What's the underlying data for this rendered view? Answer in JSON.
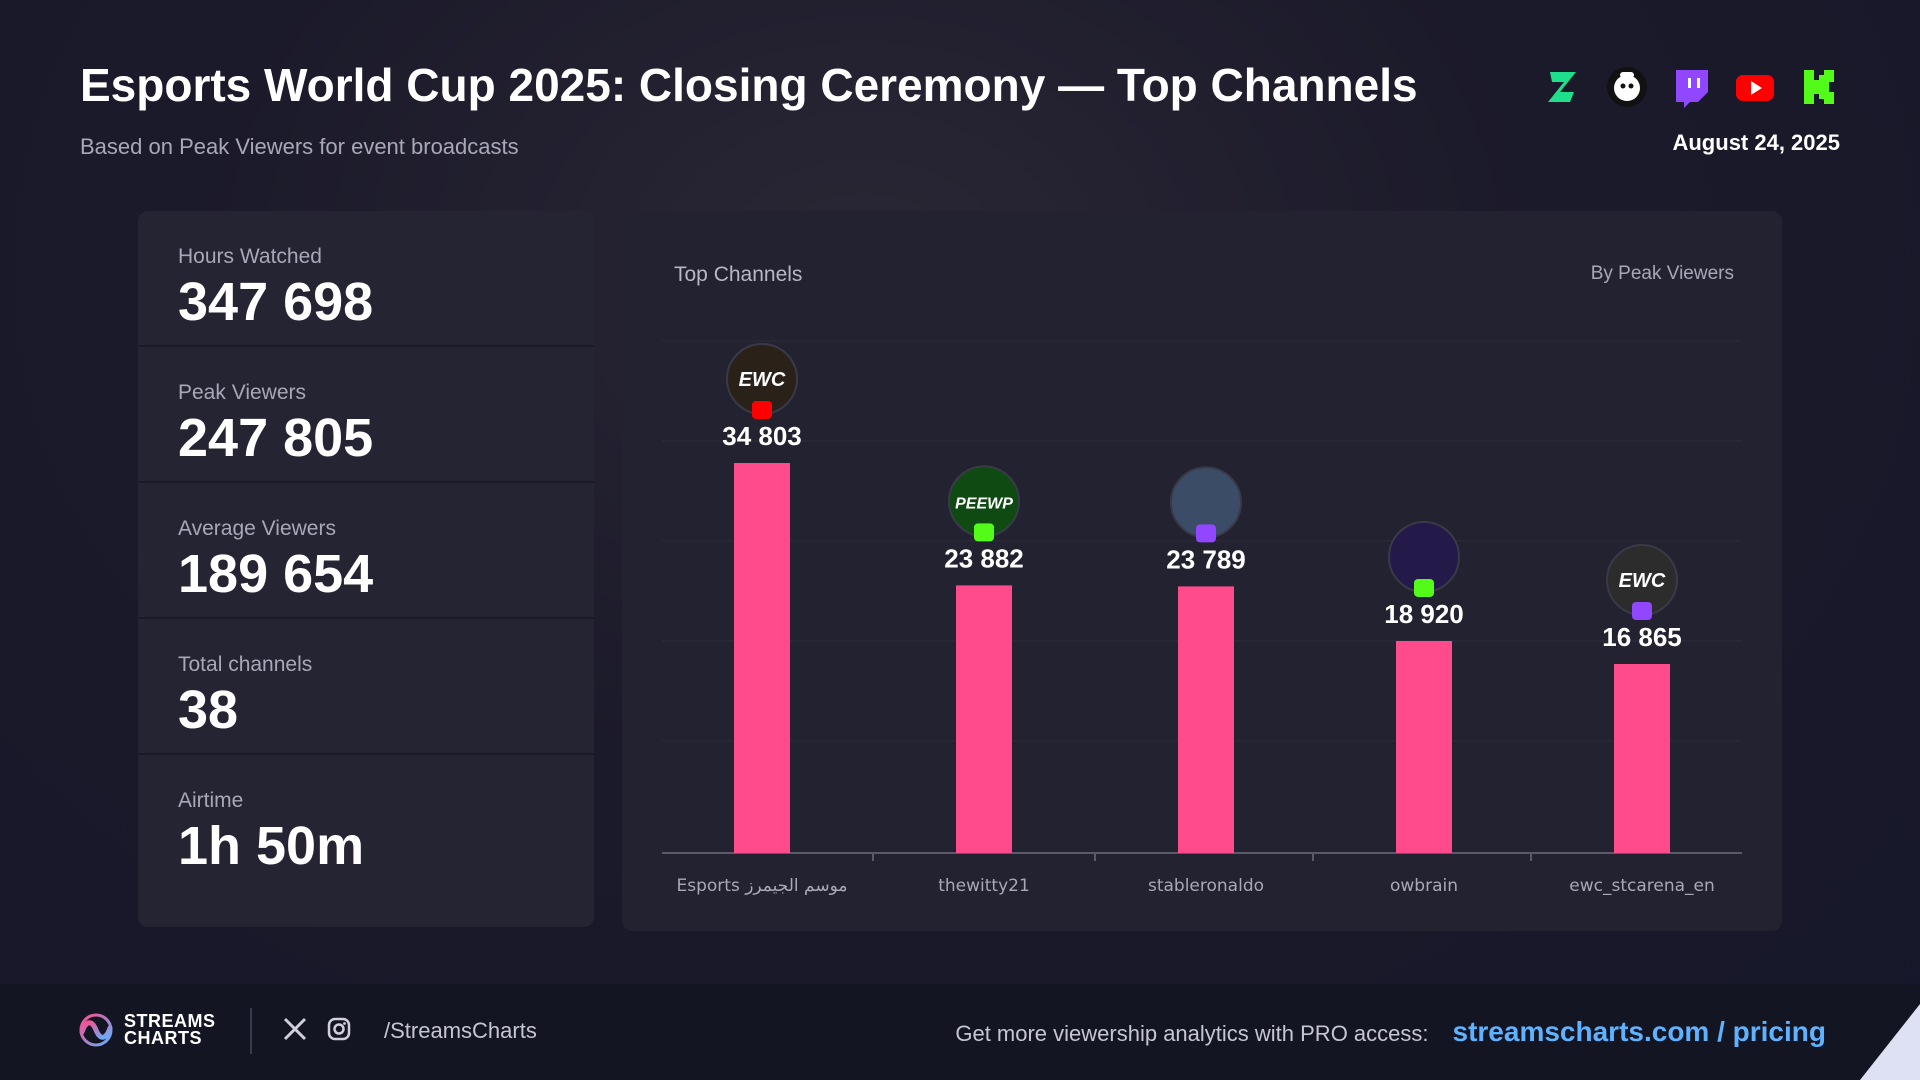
{
  "header": {
    "title": "Esports World Cup 2025: Closing Ceremony — Top Channels",
    "subtitle": "Based on Peak Viewers for event broadcasts",
    "date": "August 24, 2025",
    "platforms": [
      "zapper-icon",
      "trovo-icon",
      "twitch-icon",
      "youtube-icon",
      "kick-icon"
    ]
  },
  "stats": [
    {
      "label": "Hours Watched",
      "value": "347 698"
    },
    {
      "label": "Peak Viewers",
      "value": "247 805"
    },
    {
      "label": "Average Viewers",
      "value": "189 654"
    },
    {
      "label": "Total channels",
      "value": "38"
    },
    {
      "label": "Airtime",
      "value": "1h 50m"
    }
  ],
  "chart_data": {
    "type": "bar",
    "title": "Top Channels",
    "subtitle": "By Peak Viewers",
    "categories": [
      "Esports موسم الجيمرز",
      "thewitty21",
      "stableronaldo",
      "owbrain",
      "ewc_stcarena_en"
    ],
    "values": [
      34803,
      23882,
      23789,
      18920,
      16865
    ],
    "value_labels": [
      "34 803",
      "23 882",
      "23 789",
      "18 920",
      "16 865"
    ],
    "platforms": [
      "youtube",
      "kick",
      "twitch",
      "kick",
      "twitch"
    ],
    "avatars": [
      "EWC",
      "PEEWP",
      "",
      "",
      "EWC"
    ],
    "bar_color": "#ff4b8b",
    "grid": true
  },
  "footer": {
    "logo_line1": "STREAMS",
    "logo_line2": "CHARTS",
    "handle": "/StreamsCharts",
    "promo_text": "Get more viewership analytics with PRO access:",
    "promo_link": "streamscharts.com / pricing"
  },
  "colors": {
    "bar": "#ff4b8b",
    "accent_link": "#5fb2ff",
    "twitch": "#9146ff",
    "youtube": "#ff0000",
    "kick": "#53fc18"
  }
}
